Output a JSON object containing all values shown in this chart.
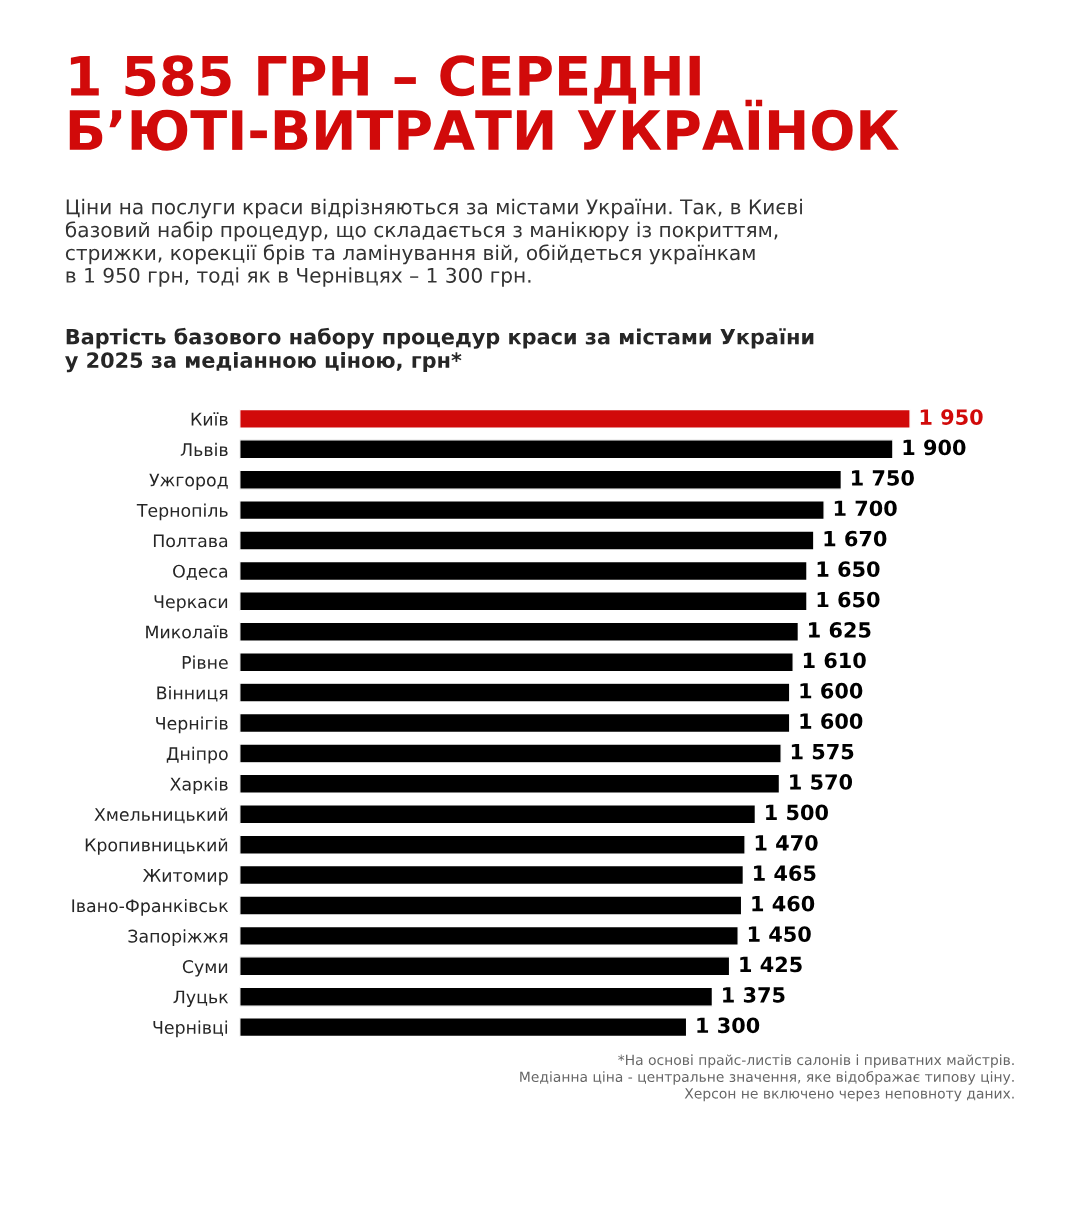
{
  "chart_data": {
    "type": "bar",
    "orientation": "horizontal",
    "title": "1 585 ГРН – СЕРЕДНІ\nБ’ЮТІ-ВИТРАТИ УКРАЇНОК",
    "subtitle": "Ціни на послуги краси відрізняються за містами України. Так, в Києві\nбазовий набір процедур, що складається з манікюру із покриттям,\nстрижки, корекції брів та ламінування вій, обійдеться українкам\nв 1 950 грн, тоді як в Чернівцях – 1 300 грн.",
    "annotations": [
      "Вартість базового набору процедур краси за містами України\nу 2025 за медіанною ціною, грн*",
      "*На основі прайс-листів салонів і приватних майстрів.\nМедіанна ціна - центральне значення, яке відображає типову ціну.\nХерсон не включено через неповноту даних."
    ],
    "categories": [
      "Київ",
      "Львів",
      "Ужгород",
      "Тернопіль",
      "Полтава",
      "Одеса",
      "Черкаси",
      "Миколаїв",
      "Рівне",
      "Вінниця",
      "Чернігів",
      "Дніпро",
      "Харків",
      "Хмельницький",
      "Кропивницький",
      "Житомир",
      "Івано-Франківськ",
      "Запоріжжя",
      "Суми",
      "Луцьк",
      "Чернівці"
    ],
    "values": [
      1950,
      1900,
      1750,
      1700,
      1670,
      1650,
      1650,
      1625,
      1610,
      1600,
      1600,
      1575,
      1570,
      1500,
      1470,
      1465,
      1460,
      1450,
      1425,
      1375,
      1300
    ],
    "value_labels": [
      "1 950",
      "1 900",
      "1 750",
      "1 700",
      "1 670",
      "1 650",
      "1 650",
      "1 625",
      "1 610",
      "1 600",
      "1 600",
      "1 575",
      "1 570",
      "1 500",
      "1 470",
      "1 465",
      "1 460",
      "1 450",
      "1 425",
      "1 375",
      "1 300"
    ],
    "colors": [
      "#d10a0a",
      "#000000",
      "#000000",
      "#000000",
      "#000000",
      "#000000",
      "#000000",
      "#000000",
      "#000000",
      "#000000",
      "#000000",
      "#000000",
      "#000000",
      "#000000",
      "#000000",
      "#000000",
      "#000000",
      "#000000",
      "#000000",
      "#000000",
      "#000000"
    ],
    "grid": false,
    "legend": false
  }
}
